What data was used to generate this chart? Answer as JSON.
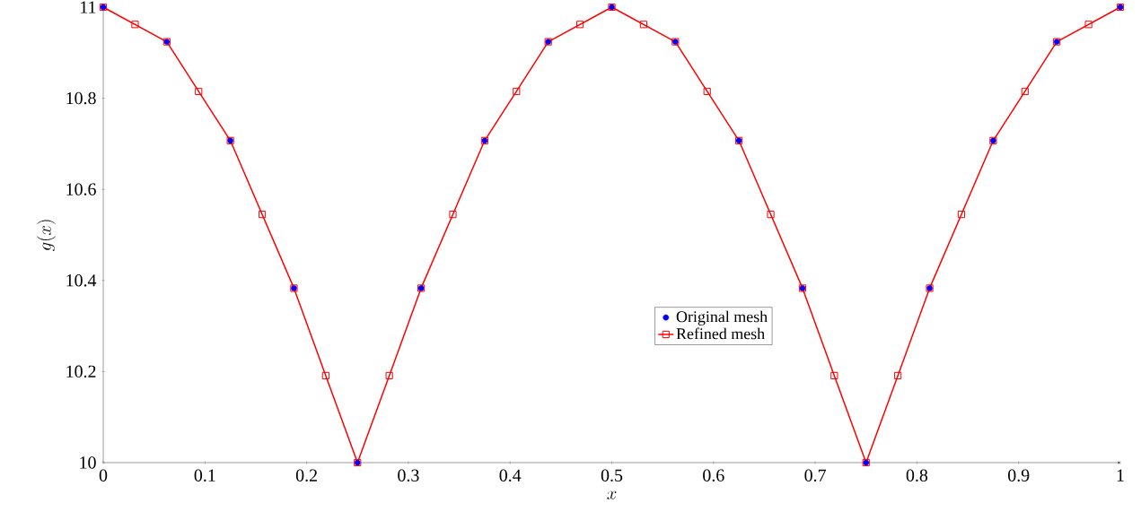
{
  "chart_data": {
    "type": "line",
    "xlabel": "x",
    "ylabel": "g(x)",
    "xlim": [
      0,
      1
    ],
    "ylim": [
      10,
      11
    ],
    "xticks": [
      0,
      0.1,
      0.2,
      0.3,
      0.4,
      0.5,
      0.6,
      0.7,
      0.8,
      0.9,
      1
    ],
    "yticks": [
      10,
      10.2,
      10.4,
      10.6,
      10.8,
      11
    ],
    "grid": false,
    "legend": "center",
    "series": [
      {
        "name": "Original mesh",
        "type": "scatter",
        "marker": "circle",
        "color": "#0000ff",
        "x": [
          0,
          0.0625,
          0.125,
          0.1875,
          0.25,
          0.3125,
          0.375,
          0.4375,
          0.5,
          0.5625,
          0.625,
          0.6875,
          0.75,
          0.8125,
          0.875,
          0.9375,
          1
        ],
        "values": [
          11,
          10.924,
          10.707,
          10.383,
          10,
          10.383,
          10.707,
          10.924,
          11,
          10.924,
          10.707,
          10.383,
          10,
          10.383,
          10.707,
          10.924,
          11
        ]
      },
      {
        "name": "Refined mesh",
        "marker": "square",
        "line_style": "solid",
        "color": "#ff0000",
        "x": [
          0,
          0.03125,
          0.0625,
          0.09375,
          0.125,
          0.15625,
          0.1875,
          0.21875,
          0.25,
          0.28125,
          0.3125,
          0.34375,
          0.375,
          0.40625,
          0.4375,
          0.46875,
          0.5,
          0.53125,
          0.5625,
          0.59375,
          0.625,
          0.65625,
          0.6875,
          0.71875,
          0.75,
          0.78125,
          0.8125,
          0.84375,
          0.875,
          0.90625,
          0.9375,
          0.96875,
          1
        ],
        "values": [
          11,
          10.962,
          10.924,
          10.815,
          10.707,
          10.545,
          10.383,
          10.191,
          10,
          10.191,
          10.383,
          10.545,
          10.707,
          10.815,
          10.924,
          10.962,
          11,
          10.962,
          10.924,
          10.815,
          10.707,
          10.545,
          10.383,
          10.191,
          10,
          10.191,
          10.383,
          10.545,
          10.707,
          10.815,
          10.924,
          10.962,
          11
        ]
      }
    ]
  }
}
